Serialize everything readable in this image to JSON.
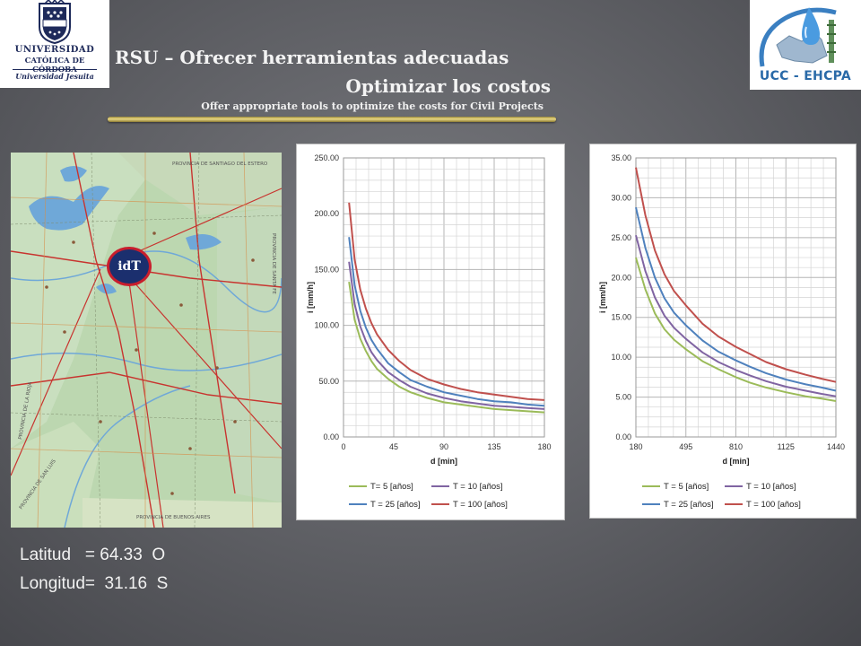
{
  "header": {
    "title_line1": "RSU – Ofrecer herramientas adecuadas",
    "title_line2": "Optimizar los costos",
    "subtitle": "Offer appropriate tools  to optimize the costs for Civil Projects"
  },
  "logos": {
    "left": {
      "line1": "UNIVERSIDAD",
      "line2": "CATÓLICA DE CÓRDOBA",
      "line3": "Universidad Jesuita",
      "color": "#1e2a5a"
    },
    "right": {
      "text": "UCC - EHCPA",
      "color": "#2a6aa8"
    }
  },
  "map": {
    "marker": "idT",
    "labels": [
      "PROVINCIA DE SANTIAGO DEL ESTERO",
      "PROVINCIA DE LA RIOJA",
      "PROVINCIA DE SAN LUIS",
      "PROVINCIA DE BUENOS AIRES",
      "PROVINCIA DE SANTA FE"
    ],
    "colors": {
      "land": "#bcd7b0",
      "water": "#6fa8d8",
      "road": "#c8342f"
    }
  },
  "coordinates": {
    "lat": "Latitud   = 64.33  O",
    "lon": "Longitud=  31.16  S"
  },
  "chart_data": [
    {
      "type": "line",
      "xlabel": "d [min]",
      "ylabel": "i [mm/h]",
      "xlim": [
        0,
        180
      ],
      "ylim": [
        0,
        250
      ],
      "xticks": [
        "0",
        "45",
        "90",
        "135",
        "180"
      ],
      "yticks": [
        "0.00",
        "50.00",
        "100.00",
        "150.00",
        "200.00",
        "250.00"
      ],
      "grid": true,
      "legend_position": "bottom",
      "x": [
        5,
        10,
        15,
        20,
        25,
        30,
        40,
        50,
        60,
        75,
        90,
        105,
        120,
        135,
        150,
        165,
        180
      ],
      "series": [
        {
          "name": "T= 5 [años]",
          "color": "#9bbb59",
          "values": [
            139,
            105,
            88,
            77,
            68,
            61,
            52,
            45,
            40,
            35,
            31,
            29,
            27,
            25,
            24,
            23,
            22
          ]
        },
        {
          "name": "T = 10 [años]",
          "color": "#8064a2",
          "values": [
            157,
            119,
            99,
            86,
            76,
            69,
            58,
            51,
            45,
            39,
            35,
            32,
            30,
            28,
            27,
            26,
            25
          ]
        },
        {
          "name": "T = 25 [años]",
          "color": "#4f81bd",
          "values": [
            179,
            136,
            113,
            98,
            87,
            79,
            66,
            58,
            51,
            45,
            40,
            37,
            34,
            32,
            31,
            29,
            28
          ]
        },
        {
          "name": "T = 100 [años]",
          "color": "#c0504d",
          "values": [
            210,
            159,
            132,
            115,
            102,
            92,
            78,
            68,
            60,
            52,
            47,
            43,
            40,
            38,
            36,
            34,
            33
          ]
        }
      ]
    },
    {
      "type": "line",
      "xlabel": "d [min]",
      "ylabel": "i [mm/h]",
      "xlim": [
        180,
        1440
      ],
      "ylim": [
        0,
        35
      ],
      "xticks": [
        "180",
        "495",
        "810",
        "1125",
        "1440"
      ],
      "yticks": [
        "0.00",
        "5.00",
        "10.00",
        "15.00",
        "20.00",
        "25.00",
        "30.00",
        "35.00"
      ],
      "grid": true,
      "legend_position": "bottom",
      "x": [
        180,
        240,
        300,
        360,
        420,
        495,
        600,
        700,
        810,
        900,
        1000,
        1125,
        1250,
        1350,
        1440
      ],
      "series": [
        {
          "name": "T = 5 [años]",
          "color": "#9bbb59",
          "values": [
            22.5,
            18.5,
            15.5,
            13.5,
            12.2,
            11.0,
            9.5,
            8.5,
            7.5,
            6.8,
            6.2,
            5.6,
            5.1,
            4.8,
            4.5
          ]
        },
        {
          "name": "T = 10 [años]",
          "color": "#8064a2",
          "values": [
            25.3,
            20.8,
            17.5,
            15.2,
            13.7,
            12.3,
            10.6,
            9.4,
            8.4,
            7.7,
            7.0,
            6.3,
            5.8,
            5.4,
            5.1
          ]
        },
        {
          "name": "T = 25 [años]",
          "color": "#4f81bd",
          "values": [
            28.8,
            23.7,
            20.0,
            17.4,
            15.6,
            14.0,
            12.1,
            10.7,
            9.6,
            8.8,
            8.0,
            7.2,
            6.6,
            6.2,
            5.8
          ]
        },
        {
          "name": "T = 100 [años]",
          "color": "#c0504d",
          "values": [
            33.8,
            27.8,
            23.4,
            20.4,
            18.3,
            16.5,
            14.2,
            12.6,
            11.3,
            10.4,
            9.4,
            8.5,
            7.8,
            7.3,
            6.9
          ]
        }
      ]
    }
  ]
}
